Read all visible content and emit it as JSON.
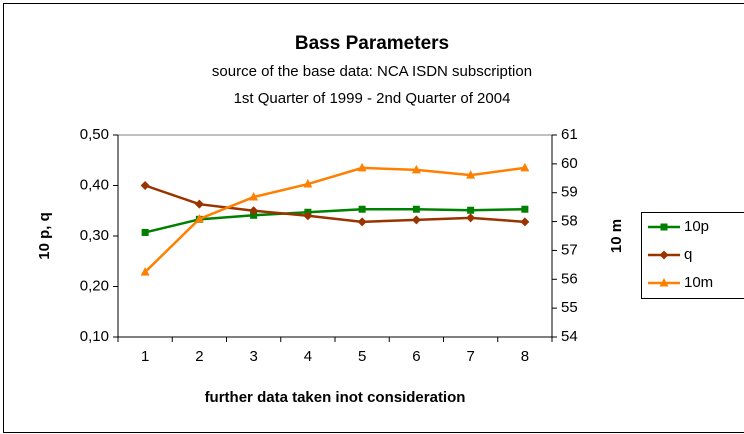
{
  "chart_data": {
    "type": "line",
    "title": "Bass Parameters",
    "subtitle": [
      "source of the base data: NCA ISDN subscription",
      "1st Quarter of 1999  - 2nd Quarter of 2004"
    ],
    "x_label": "further data taken inot consideration",
    "y_label": "10 p,  q",
    "y2_label": "10 m",
    "categories": [
      "1",
      "2",
      "3",
      "4",
      "5",
      "6",
      "7",
      "8"
    ],
    "ylim": [
      0.1,
      0.5
    ],
    "yticks": [
      {
        "value": 0.1,
        "label": "0,10"
      },
      {
        "value": 0.2,
        "label": "0,20"
      },
      {
        "value": 0.3,
        "label": "0,30"
      },
      {
        "value": 0.4,
        "label": "0,40"
      },
      {
        "value": 0.5,
        "label": "0,50"
      }
    ],
    "y2lim": [
      54,
      61
    ],
    "y2ticks": [
      54,
      55,
      56,
      57,
      58,
      59,
      60,
      61
    ],
    "series": [
      {
        "name": "10p",
        "color": "#008000",
        "marker": "square",
        "values": [
          0.307,
          0.333,
          0.341,
          0.347,
          0.353,
          0.353,
          0.351,
          0.353
        ]
      },
      {
        "name": "q",
        "color": "#993300",
        "marker": "diamond",
        "values": [
          0.4,
          0.363,
          0.35,
          0.34,
          0.328,
          0.332,
          0.336,
          0.328
        ]
      },
      {
        "name": "10m",
        "color": "#ff8000",
        "marker": "triangle",
        "axis": "y2",
        "values": [
          56.25,
          58.09,
          58.85,
          59.3,
          59.86,
          59.79,
          59.61,
          59.86
        ]
      }
    ]
  }
}
